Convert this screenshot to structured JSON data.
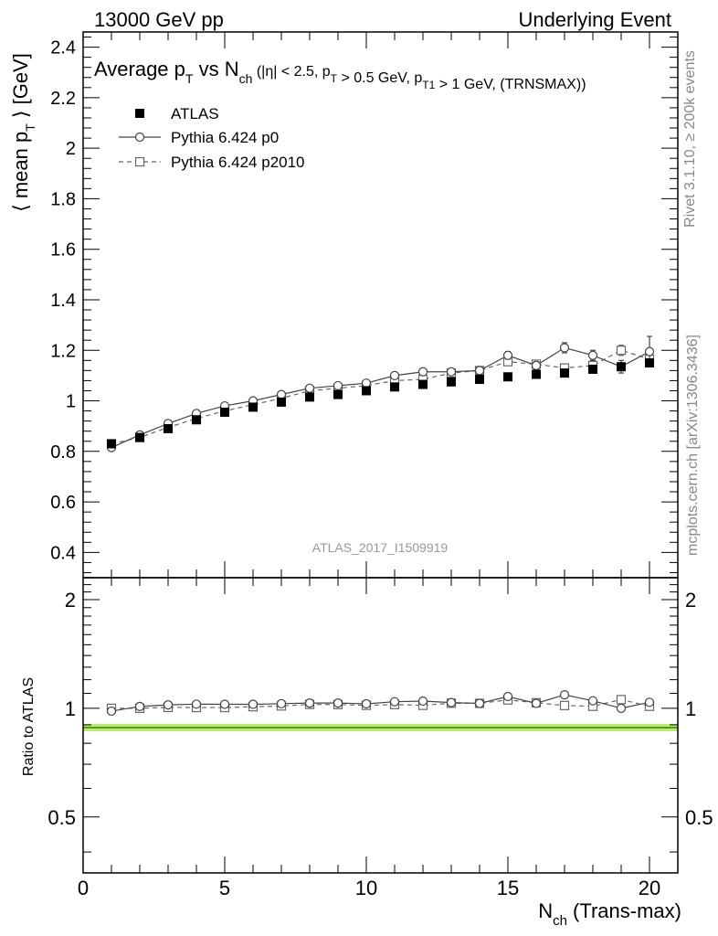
{
  "header": {
    "left": "13000 GeV pp",
    "right": "Underlying Event"
  },
  "side_labels": {
    "rivet": "Rivet 3.1.10, ≥ 200k events",
    "mcplots": "mcplots.cern.ch [arXiv:1306.3436]"
  },
  "colors": {
    "atlas": "#000000",
    "p0": "#444444",
    "p2010": "#666666",
    "ratio_band": "#b8ee6e",
    "ratio_line": "#3a7a00",
    "watermark": "#999999"
  },
  "chart_data": [
    {
      "type": "scatter",
      "title": "Average p_T vs N_ch (|η| < 2.5, p_T > 0.5 GeV, p_T1 > 1 GeV, (TRNSMAX))",
      "ylabel": "⟨ mean p_T ⟩ [GeV]",
      "watermark": "ATLAS_2017_I1509919",
      "xlim": [
        0,
        21
      ],
      "ylim": [
        0.3,
        2.46
      ],
      "yticks": [
        0.4,
        0.6,
        0.8,
        1,
        1.2,
        1.4,
        1.6,
        1.8,
        2,
        2.2,
        2.4
      ],
      "ytick_labels": [
        "0.4",
        "0.6",
        "0.8",
        "1",
        "1.2",
        "1.4",
        "1.6",
        "1.8",
        "2",
        "2.2",
        "2.4"
      ],
      "legend_position": "top-left",
      "x": [
        1,
        2,
        3,
        4,
        5,
        6,
        7,
        8,
        9,
        10,
        11,
        12,
        13,
        14,
        15,
        16,
        17,
        18,
        19,
        20
      ],
      "series": [
        {
          "name": "ATLAS",
          "style": "filled-square",
          "values": [
            0.83,
            0.855,
            0.89,
            0.925,
            0.955,
            0.975,
            0.995,
            1.015,
            1.025,
            1.04,
            1.055,
            1.065,
            1.075,
            1.085,
            1.095,
            1.105,
            1.11,
            1.125,
            1.135,
            1.15
          ]
        },
        {
          "name": "Pythia 6.424 p0",
          "style": "open-circle-solid",
          "values": [
            0.815,
            0.865,
            0.91,
            0.95,
            0.98,
            1.0,
            1.025,
            1.05,
            1.06,
            1.07,
            1.1,
            1.115,
            1.115,
            1.12,
            1.18,
            1.14,
            1.21,
            1.18,
            1.135,
            1.195
          ],
          "errors": [
            0,
            0,
            0,
            0,
            0,
            0,
            0,
            0,
            0,
            0,
            0,
            0,
            0,
            0,
            0.015,
            0.015,
            0.02,
            0.02,
            0.025,
            0.06
          ]
        },
        {
          "name": "Pythia 6.424 p2010",
          "style": "open-square-dashed",
          "values": [
            0.83,
            0.855,
            0.895,
            0.93,
            0.96,
            0.985,
            1.01,
            1.04,
            1.05,
            1.06,
            1.08,
            1.085,
            1.11,
            1.12,
            1.155,
            1.145,
            1.13,
            1.14,
            1.2,
            1.165
          ],
          "errors": [
            0,
            0,
            0,
            0,
            0,
            0,
            0,
            0,
            0,
            0,
            0,
            0,
            0,
            0,
            0.015,
            0.015,
            0.015,
            0.02,
            0.02,
            0.025
          ]
        }
      ]
    },
    {
      "type": "scatter",
      "ylabel": "Ratio to ATLAS",
      "xlabel": "N_ch (Trans-max)",
      "xlim": [
        0,
        21
      ],
      "ylim": [
        0.35,
        2.3
      ],
      "yscale": "log",
      "xticks": [
        0,
        5,
        10,
        15,
        20
      ],
      "xtick_labels": [
        "0",
        "5",
        "10",
        "15",
        "20"
      ],
      "yticks": [
        0.5,
        1,
        2
      ],
      "ytick_labels": [
        "0.5",
        "1",
        "2"
      ],
      "x": [
        1,
        2,
        3,
        4,
        5,
        6,
        7,
        8,
        9,
        10,
        11,
        12,
        13,
        14,
        15,
        16,
        17,
        18,
        19,
        20
      ],
      "series": [
        {
          "name": "Pythia 6.424 p0",
          "values": [
            0.982,
            1.012,
            1.022,
            1.027,
            1.026,
            1.026,
            1.03,
            1.034,
            1.034,
            1.029,
            1.043,
            1.047,
            1.037,
            1.032,
            1.078,
            1.032,
            1.09,
            1.049,
            1.0,
            1.039
          ]
        },
        {
          "name": "Pythia 6.424 p2010",
          "values": [
            1.0,
            1.0,
            1.006,
            1.005,
            1.005,
            1.01,
            1.015,
            1.025,
            1.024,
            1.019,
            1.024,
            1.019,
            1.033,
            1.032,
            1.055,
            1.036,
            1.018,
            1.013,
            1.057,
            1.013
          ]
        }
      ]
    }
  ]
}
